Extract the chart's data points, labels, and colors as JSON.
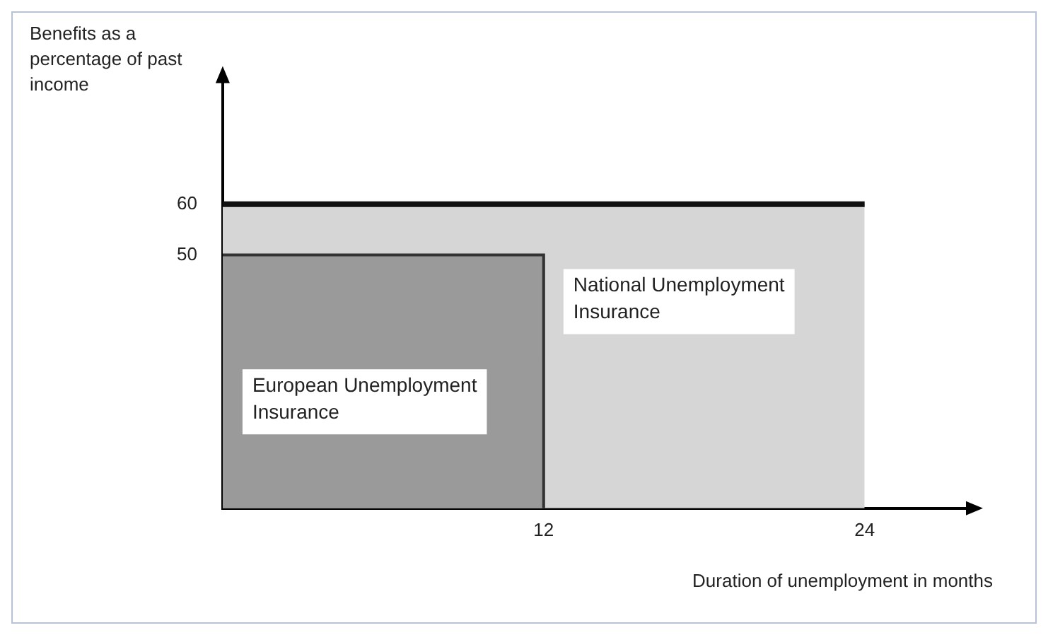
{
  "chart_data": {
    "type": "area",
    "xlabel": "Duration of unemployment in months",
    "ylabel": "Benefits as a percentage of past income",
    "xlim": [
      0,
      28
    ],
    "ylim": [
      0,
      85
    ],
    "xticks": [
      12,
      24
    ],
    "yticks": [
      50,
      60
    ],
    "legend": false,
    "series": [
      {
        "name": "National Unemployment Insurance",
        "color": "#d6d6d6",
        "x": [
          0,
          24
        ],
        "values": [
          60,
          60
        ]
      },
      {
        "name": "European Unemployment Insurance",
        "color": "#9a9a9a",
        "x": [
          0,
          12,
          12
        ],
        "values": [
          50,
          50,
          0
        ]
      }
    ]
  }
}
